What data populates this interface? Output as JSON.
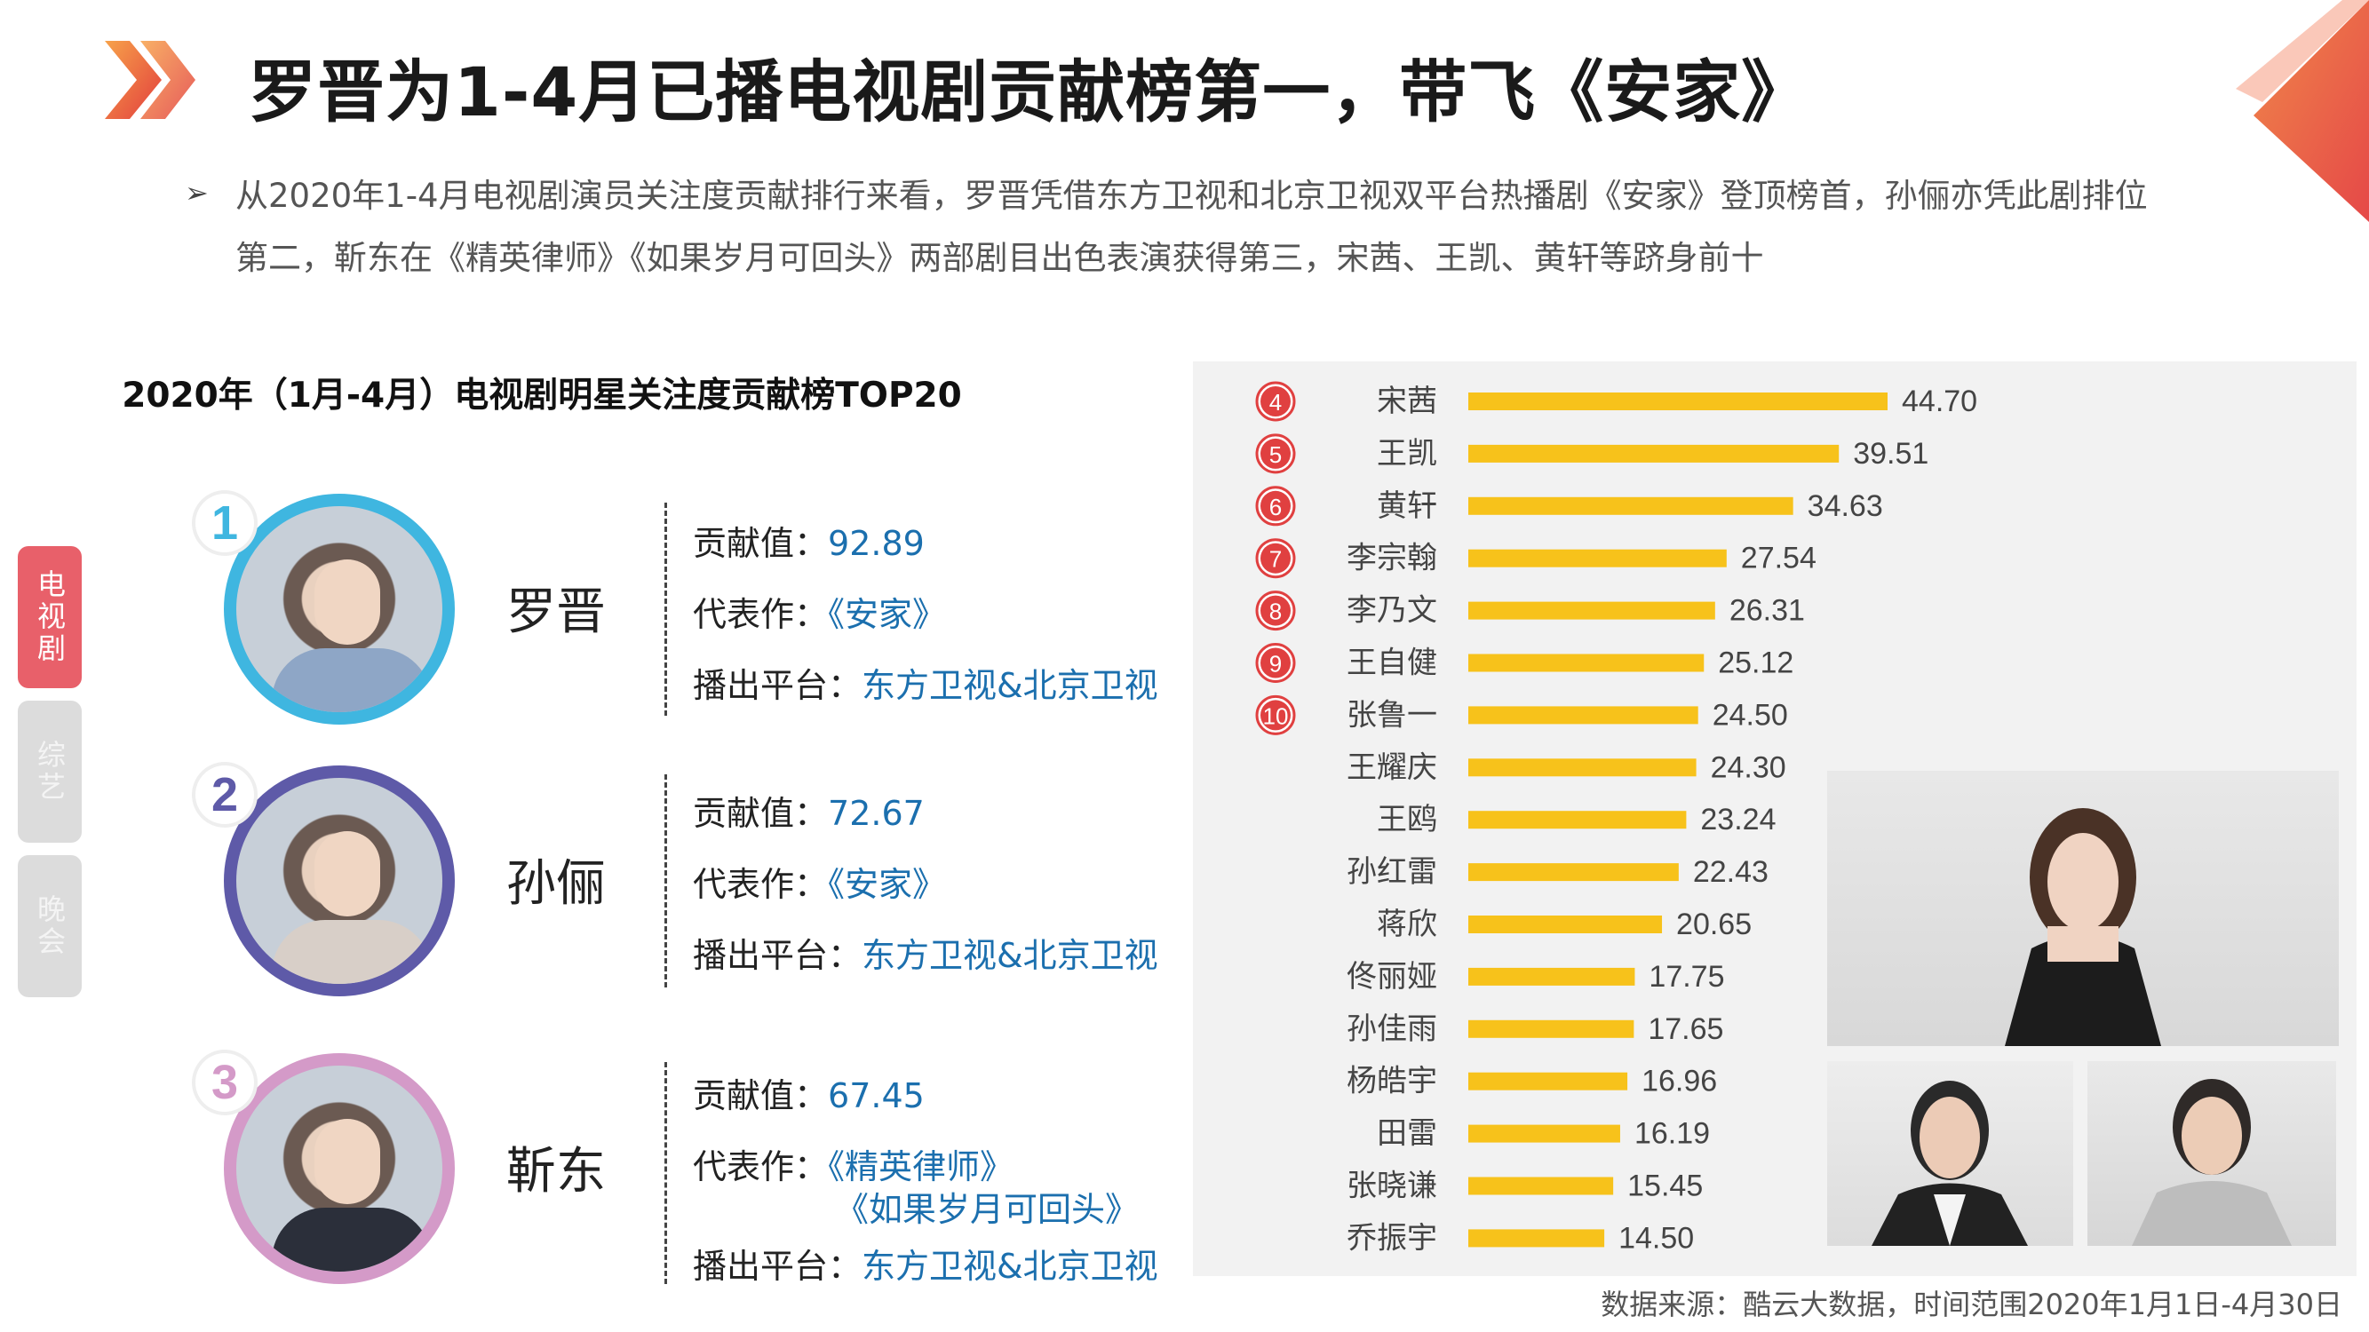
{
  "header": {
    "title": "罗晋为1-4月已播电视剧贡献榜第一，带飞《安家》",
    "summary_lines": [
      "从2020年1-4月电视剧演员关注度贡献排行来看，罗晋凭借东方卫视和北京卫视双平台热播剧《安家》登顶榜首，孙俪亦凭此剧排位",
      "第二，靳东在《精英律师》《如果岁月可回头》两部剧目出色表演获得第三，宋茜、王凯、黄轩等跻身前十"
    ]
  },
  "side_tabs": [
    {
      "label": "电视剧",
      "active": true
    },
    {
      "label": "综艺",
      "active": false
    },
    {
      "label": "晚会",
      "active": false
    }
  ],
  "left_title": "2020年（1月-4月）电视剧明星关注度贡献榜TOP20",
  "top3": [
    {
      "rank": "1",
      "name": "罗晋",
      "value_label": "贡献值：",
      "value": "92.89",
      "works_label": "代表作：",
      "works": [
        "《安家》"
      ],
      "platform_label": "播出平台：",
      "platform": "东方卫视&北京卫视",
      "ring_color": "#3fb6e0",
      "rank_color": "#3fb6e0"
    },
    {
      "rank": "2",
      "name": "孙俪",
      "value_label": "贡献值：",
      "value": "72.67",
      "works_label": "代表作：",
      "works": [
        "《安家》"
      ],
      "platform_label": "播出平台：",
      "platform": "东方卫视&北京卫视",
      "ring_color": "#5e5aa8",
      "rank_color": "#5e5aa8"
    },
    {
      "rank": "3",
      "name": "靳东",
      "value_label": "贡献值：",
      "value": "67.45",
      "works_label": "代表作：",
      "works": [
        "《精英律师》",
        "《如果岁月可回头》"
      ],
      "platform_label": "播出平台：",
      "platform": "东方卫视&北京卫视",
      "ring_color": "#d49ac8",
      "rank_color": "#d49ac8"
    }
  ],
  "chart_data": {
    "type": "bar",
    "orientation": "horizontal",
    "categories": [
      "宋茜",
      "王凯",
      "黄轩",
      "李宗翰",
      "李乃文",
      "王自健",
      "张鲁一",
      "王耀庆",
      "王鸥",
      "孙红雷",
      "蒋欣",
      "佟丽娅",
      "孙佳雨",
      "杨皓宇",
      "田雷",
      "张晓谦",
      "乔振宇"
    ],
    "values": [
      44.7,
      39.51,
      34.63,
      27.54,
      26.31,
      25.12,
      24.5,
      24.3,
      23.24,
      22.43,
      20.65,
      17.75,
      17.65,
      16.96,
      16.19,
      15.45,
      14.5
    ],
    "value_labels": [
      "44.70",
      "39.51",
      "34.63",
      "27.54",
      "26.31",
      "25.12",
      "24.50",
      "24.30",
      "23.24",
      "22.43",
      "20.65",
      "17.75",
      "17.65",
      "16.96",
      "16.19",
      "15.45",
      "14.50"
    ],
    "rank_badges": [
      "4",
      "5",
      "6",
      "7",
      "8",
      "9",
      "10"
    ],
    "bar_color": "#f7c21b",
    "badge_color": "#e04040",
    "xlim": [
      0,
      44.7
    ],
    "grid": false,
    "legend": "none"
  },
  "footer": {
    "source": "数据来源：酷云大数据，时间范围2020年1月1日-4月30日"
  },
  "colors": {
    "value_text": "#1b6fae",
    "accent_red": "#e8606a",
    "accent_orange": "#f08a3a"
  }
}
